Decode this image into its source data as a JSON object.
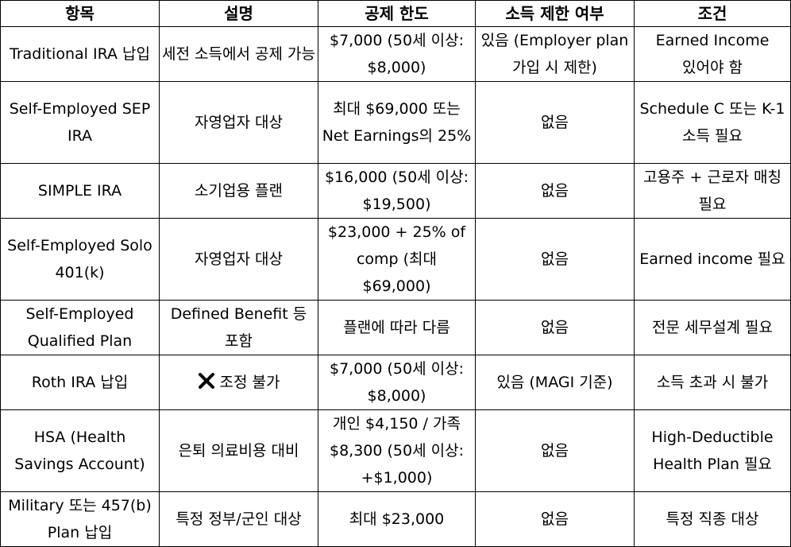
{
  "table": {
    "headers": [
      "항목",
      "설명",
      "공제 한도",
      "소득 제한 여부",
      "조건"
    ],
    "rows": [
      {
        "item": "Traditional IRA 납입",
        "description": "세전 소득에서 공제 가능",
        "limit": "$7,000 (50세 이상: $8,000)",
        "income_limit": "있음 (Employer plan 가입 시 제한)",
        "condition": "Earned Income 있어야 함"
      },
      {
        "item": "Self-Employed SEP IRA",
        "description": "자영업자 대상",
        "limit": "최대 $69,000 또는 Net Earnings의 25%",
        "income_limit": "없음",
        "condition": "Schedule C 또는 K-1 소득 필요"
      },
      {
        "item": "SIMPLE IRA",
        "description": "소기업용 플랜",
        "limit": "$16,000 (50세 이상: $19,500)",
        "income_limit": "없음",
        "condition": "고용주 + 근로자 매칭 필요"
      },
      {
        "item": "Self-Employed Solo 401(k)",
        "description": "자영업자 대상",
        "limit": "$23,000 + 25% of comp (최대 $69,000)",
        "income_limit": "없음",
        "condition": "Earned income 필요"
      },
      {
        "item": "Self-Employed Qualified Plan",
        "description": "Defined Benefit 등 포함",
        "limit": "플랜에 따라 다름",
        "income_limit": "없음",
        "condition": "전문 세무설계 필요"
      },
      {
        "item": "Roth IRA 납입",
        "description": "조정 불가",
        "description_icon": "cross-mark-icon",
        "limit": "$7,000 (50세 이상: $8,000)",
        "income_limit": "있음 (MAGI 기준)",
        "condition": "소득 초과 시 불가"
      },
      {
        "item": "HSA (Health Savings Account)",
        "description": "은퇴 의료비용 대비",
        "limit": "개인 $4,150 / 가족 $8,300 (50세 이상: +$1,000)",
        "income_limit": "없음",
        "condition": "High-Deductible Health Plan 필요"
      },
      {
        "item": "Military 또는 457(b) Plan 납입",
        "description": "특정 정부/군인 대상",
        "limit": "최대 $23,000",
        "income_limit": "없음",
        "condition": "특정 직종 대상"
      }
    ]
  }
}
